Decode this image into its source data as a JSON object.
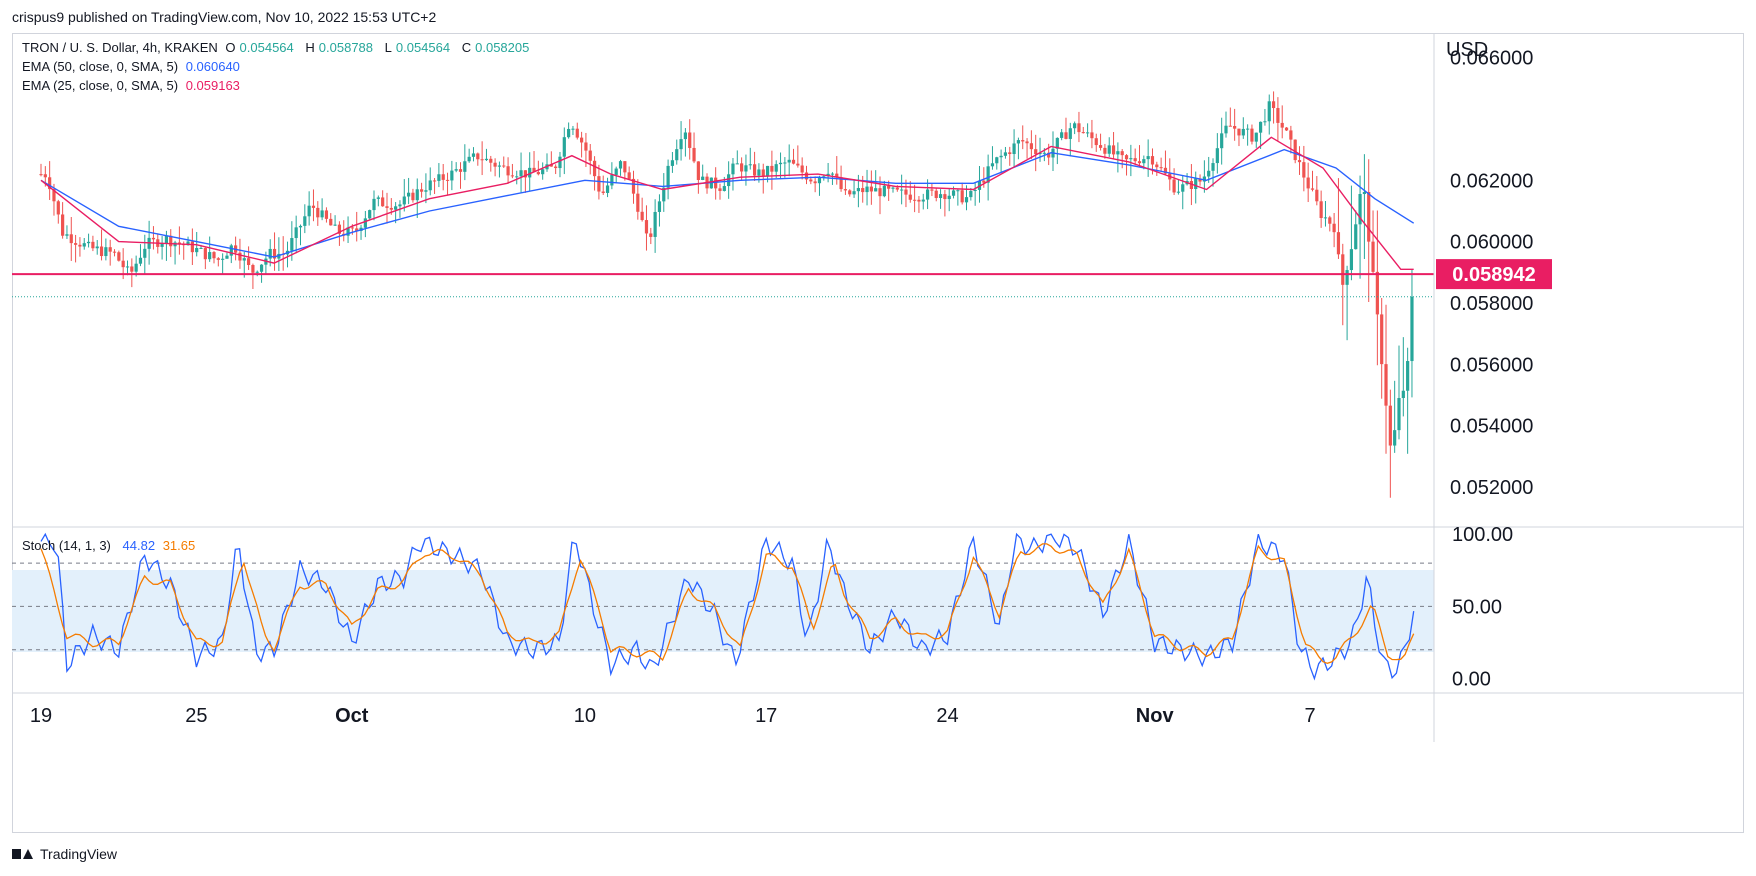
{
  "header": {
    "published": "crispus9 published on TradingView.com, Nov 10, 2022 15:53 UTC+2"
  },
  "footer": {
    "brand": "TradingView"
  },
  "colors": {
    "up": "#26a69a",
    "down": "#ef5350",
    "ema50": "#2962ff",
    "ema25": "#e91e63",
    "stoch_k": "#2962ff",
    "stoch_d": "#f57c00",
    "price_line": "#e91e63"
  },
  "chart_data": [
    {
      "type": "candlestick",
      "legend": {
        "symbol": "TRON / U. S. Dollar, 4h, KRAKEN",
        "o_label": "O",
        "o_val": "0.054564",
        "h_label": "H",
        "h_val": "0.058788",
        "l_label": "L",
        "l_val": "0.054564",
        "c_label": "C",
        "c_val": "0.058205",
        "ema50_label": "EMA (50, close, 0, SMA, 5)",
        "ema50_val": "0.060640",
        "ema25_label": "EMA (25, close, 0, SMA, 5)",
        "ema25_val": "0.059163"
      },
      "y_axis": {
        "unit": "USD",
        "ticks": [
          "0.066000",
          "0.062000",
          "0.060000",
          "0.058000",
          "0.056000",
          "0.054000",
          "0.052000"
        ]
      },
      "tick_values": [
        0.066,
        0.062,
        0.06,
        0.058,
        0.056,
        0.054,
        0.052
      ],
      "ylim": [
        0.0507,
        0.0668
      ],
      "x_axis": {
        "ticks": [
          {
            "label": "19",
            "bold": false,
            "day": 0
          },
          {
            "label": "25",
            "bold": false,
            "day": 6
          },
          {
            "label": "Oct",
            "bold": true,
            "day": 12
          },
          {
            "label": "10",
            "bold": false,
            "day": 21
          },
          {
            "label": "17",
            "bold": false,
            "day": 28
          },
          {
            "label": "24",
            "bold": false,
            "day": 35
          },
          {
            "label": "Nov",
            "bold": true,
            "day": 43
          },
          {
            "label": "7",
            "bold": false,
            "day": 49
          }
        ]
      },
      "horizontal_line": {
        "value": 0.058942,
        "label": "0.058942"
      },
      "last_close": 0.058205,
      "path_keypoints": [
        [
          0,
          0.0622
        ],
        [
          0.4,
          0.0622
        ],
        [
          1,
          0.0603
        ],
        [
          2,
          0.0598
        ],
        [
          3,
          0.0596
        ],
        [
          3.6,
          0.0589
        ],
        [
          4.2,
          0.0599
        ],
        [
          5,
          0.0601
        ],
        [
          6,
          0.0598
        ],
        [
          7,
          0.0594
        ],
        [
          7.6,
          0.0599
        ],
        [
          8.3,
          0.059
        ],
        [
          9,
          0.0596
        ],
        [
          9.6,
          0.0596
        ],
        [
          10.6,
          0.0612
        ],
        [
          11.6,
          0.0603
        ],
        [
          12.3,
          0.0603
        ],
        [
          13,
          0.0613
        ],
        [
          14,
          0.0612
        ],
        [
          15,
          0.0618
        ],
        [
          16,
          0.0622
        ],
        [
          17,
          0.0628
        ],
        [
          18,
          0.0624
        ],
        [
          19,
          0.0622
        ],
        [
          20,
          0.0624
        ],
        [
          20.6,
          0.064
        ],
        [
          21.2,
          0.063
        ],
        [
          21.8,
          0.0615
        ],
        [
          22.6,
          0.0626
        ],
        [
          23.2,
          0.0612
        ],
        [
          23.6,
          0.0599
        ],
        [
          24.4,
          0.0625
        ],
        [
          25,
          0.0638
        ],
        [
          25.6,
          0.062
        ],
        [
          26.4,
          0.0618
        ],
        [
          27,
          0.0625
        ],
        [
          28,
          0.0622
        ],
        [
          29,
          0.0626
        ],
        [
          30,
          0.062
        ],
        [
          30.6,
          0.0624
        ],
        [
          31.2,
          0.0615
        ],
        [
          32,
          0.0617
        ],
        [
          33,
          0.0616
        ],
        [
          34,
          0.0615
        ],
        [
          35,
          0.0616
        ],
        [
          36,
          0.0614
        ],
        [
          37,
          0.0626
        ],
        [
          38,
          0.0633
        ],
        [
          39,
          0.0628
        ],
        [
          40,
          0.0638
        ],
        [
          41,
          0.0632
        ],
        [
          42,
          0.0626
        ],
        [
          43,
          0.0628
        ],
        [
          44,
          0.0617
        ],
        [
          45,
          0.062
        ],
        [
          46,
          0.0638
        ],
        [
          47,
          0.0634
        ],
        [
          47.6,
          0.0644
        ],
        [
          48.2,
          0.0636
        ],
        [
          49,
          0.062
        ],
        [
          49.6,
          0.0609
        ],
        [
          50.1,
          0.0605
        ],
        [
          50.4,
          0.0585
        ],
        [
          50.8,
          0.06
        ],
        [
          51.2,
          0.062
        ],
        [
          51.7,
          0.058
        ],
        [
          52,
          0.0556
        ],
        [
          52.3,
          0.053
        ],
        [
          52.6,
          0.0548
        ],
        [
          52.9,
          0.0555
        ],
        [
          53.1,
          0.0582
        ]
      ],
      "ema50_points": [
        [
          0,
          0.062
        ],
        [
          3,
          0.0605
        ],
        [
          6,
          0.06
        ],
        [
          9,
          0.0595
        ],
        [
          12,
          0.0603
        ],
        [
          15,
          0.061
        ],
        [
          18,
          0.0615
        ],
        [
          21,
          0.062
        ],
        [
          24,
          0.0618
        ],
        [
          27,
          0.062
        ],
        [
          30,
          0.0621
        ],
        [
          33,
          0.0619
        ],
        [
          36,
          0.0619
        ],
        [
          39,
          0.0629
        ],
        [
          42,
          0.0625
        ],
        [
          45,
          0.062
        ],
        [
          48,
          0.063
        ],
        [
          50,
          0.0624
        ],
        [
          51.5,
          0.0614
        ],
        [
          53,
          0.0606
        ]
      ],
      "ema25_points": [
        [
          0,
          0.062
        ],
        [
          3,
          0.06
        ],
        [
          6,
          0.0599
        ],
        [
          9,
          0.0593
        ],
        [
          12,
          0.0605
        ],
        [
          15,
          0.0614
        ],
        [
          18,
          0.0619
        ],
        [
          20.5,
          0.0628
        ],
        [
          22,
          0.0622
        ],
        [
          24,
          0.0617
        ],
        [
          27,
          0.0621
        ],
        [
          30,
          0.0622
        ],
        [
          33,
          0.0618
        ],
        [
          36,
          0.0617
        ],
        [
          39,
          0.0631
        ],
        [
          42,
          0.0626
        ],
        [
          45,
          0.0617
        ],
        [
          47.5,
          0.0634
        ],
        [
          49.5,
          0.0624
        ],
        [
          51,
          0.0607
        ],
        [
          52.5,
          0.0591
        ],
        [
          53,
          0.0591
        ]
      ]
    },
    {
      "type": "line",
      "legend": {
        "label": "Stoch (14, 1, 3)",
        "k_val": "44.82",
        "d_val": "31.65"
      },
      "y_axis": {
        "ticks": [
          "100.00",
          "50.00",
          "0.00"
        ]
      },
      "tick_values": [
        100,
        50,
        0
      ],
      "bands": [
        20,
        50,
        80
      ],
      "ylim": [
        -10,
        105
      ],
      "k_keypoints": [
        [
          0,
          95
        ],
        [
          0.6,
          95
        ],
        [
          1,
          10
        ],
        [
          2,
          30
        ],
        [
          3,
          20
        ],
        [
          4,
          85
        ],
        [
          5,
          65
        ],
        [
          6,
          15
        ],
        [
          7,
          25
        ],
        [
          7.6,
          95
        ],
        [
          8.3,
          18
        ],
        [
          9,
          20
        ],
        [
          10,
          75
        ],
        [
          11,
          65
        ],
        [
          12,
          25
        ],
        [
          13,
          65
        ],
        [
          14,
          70
        ],
        [
          14.6,
          95
        ],
        [
          16,
          85
        ],
        [
          17,
          75
        ],
        [
          18,
          25
        ],
        [
          19,
          20
        ],
        [
          20,
          25
        ],
        [
          20.6,
          100
        ],
        [
          21.4,
          45
        ],
        [
          22,
          10
        ],
        [
          23,
          20
        ],
        [
          23.6,
          5
        ],
        [
          25,
          70
        ],
        [
          26,
          45
        ],
        [
          26.8,
          10
        ],
        [
          28,
          95
        ],
        [
          29,
          80
        ],
        [
          29.6,
          25
        ],
        [
          30.4,
          95
        ],
        [
          31,
          60
        ],
        [
          32,
          20
        ],
        [
          33,
          45
        ],
        [
          34,
          20
        ],
        [
          35,
          30
        ],
        [
          36,
          95
        ],
        [
          37,
          35
        ],
        [
          37.6,
          95
        ],
        [
          38.4,
          90
        ],
        [
          39,
          100
        ],
        [
          40,
          90
        ],
        [
          41,
          45
        ],
        [
          42,
          95
        ],
        [
          43,
          25
        ],
        [
          44,
          20
        ],
        [
          45,
          15
        ],
        [
          46,
          25
        ],
        [
          47,
          95
        ],
        [
          48,
          85
        ],
        [
          48.6,
          20
        ],
        [
          49.2,
          5
        ],
        [
          50,
          15
        ],
        [
          50.6,
          25
        ],
        [
          51.2,
          70
        ],
        [
          51.8,
          10
        ],
        [
          52.4,
          5
        ],
        [
          53,
          45
        ]
      ],
      "d_keypoints": [
        [
          0,
          90
        ],
        [
          1,
          30
        ],
        [
          2,
          25
        ],
        [
          3,
          25
        ],
        [
          4,
          70
        ],
        [
          5,
          65
        ],
        [
          6,
          25
        ],
        [
          7,
          25
        ],
        [
          7.8,
          85
        ],
        [
          8.6,
          30
        ],
        [
          9,
          22
        ],
        [
          10,
          65
        ],
        [
          11,
          65
        ],
        [
          12,
          35
        ],
        [
          13,
          60
        ],
        [
          14,
          68
        ],
        [
          14.8,
          88
        ],
        [
          16,
          85
        ],
        [
          17,
          72
        ],
        [
          18,
          32
        ],
        [
          19,
          24
        ],
        [
          20,
          30
        ],
        [
          20.8,
          85
        ],
        [
          21.6,
          45
        ],
        [
          22,
          20
        ],
        [
          23,
          18
        ],
        [
          24,
          15
        ],
        [
          25,
          62
        ],
        [
          26,
          48
        ],
        [
          27,
          20
        ],
        [
          28,
          85
        ],
        [
          29,
          78
        ],
        [
          29.8,
          35
        ],
        [
          30.6,
          80
        ],
        [
          31,
          60
        ],
        [
          32,
          28
        ],
        [
          33,
          40
        ],
        [
          34,
          28
        ],
        [
          35,
          32
        ],
        [
          36,
          85
        ],
        [
          37,
          45
        ],
        [
          37.8,
          88
        ],
        [
          38.6,
          90
        ],
        [
          39,
          92
        ],
        [
          40,
          85
        ],
        [
          41,
          50
        ],
        [
          42,
          88
        ],
        [
          43,
          30
        ],
        [
          44,
          22
        ],
        [
          45,
          18
        ],
        [
          46,
          28
        ],
        [
          47,
          90
        ],
        [
          48,
          80
        ],
        [
          48.8,
          25
        ],
        [
          49.4,
          12
        ],
        [
          50,
          15
        ],
        [
          50.6,
          28
        ],
        [
          51.4,
          50
        ],
        [
          52,
          18
        ],
        [
          52.6,
          10
        ],
        [
          53,
          32
        ]
      ]
    }
  ]
}
